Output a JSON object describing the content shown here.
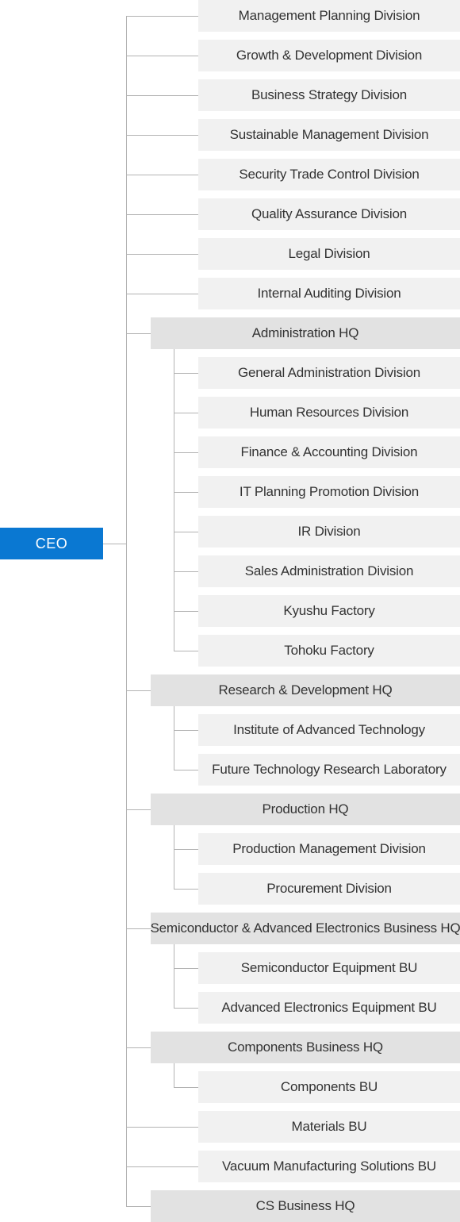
{
  "ceo": {
    "label": "CEO"
  },
  "items": [
    {
      "label": "Management Planning Division",
      "kind": "division",
      "subs": []
    },
    {
      "label": "Growth & Development Division",
      "kind": "division",
      "subs": []
    },
    {
      "label": "Business Strategy Division",
      "kind": "division",
      "subs": []
    },
    {
      "label": "Sustainable Management Division",
      "kind": "division",
      "subs": []
    },
    {
      "label": "Security Trade Control Division",
      "kind": "division",
      "subs": []
    },
    {
      "label": "Quality Assurance Division",
      "kind": "division",
      "subs": []
    },
    {
      "label": "Legal Division",
      "kind": "division",
      "subs": []
    },
    {
      "label": "Internal Auditing Division",
      "kind": "division",
      "subs": []
    },
    {
      "label": "Administration HQ",
      "kind": "hq",
      "subs": [
        "General Administration Division",
        "Human Resources Division",
        "Finance & Accounting Division",
        "IT Planning Promotion Division",
        "IR Division",
        "Sales Administration Division",
        "Kyushu Factory",
        "Tohoku Factory"
      ]
    },
    {
      "label": "Research & Development HQ",
      "kind": "hq",
      "subs": [
        "Institute of Advanced Technology",
        "Future Technology Research Laboratory"
      ]
    },
    {
      "label": "Production HQ",
      "kind": "hq",
      "subs": [
        "Production Management Division",
        "Procurement Division"
      ]
    },
    {
      "label": "Semiconductor & Advanced Electronics Business HQ",
      "kind": "hq",
      "subs": [
        "Semiconductor Equipment BU",
        "Advanced Electronics Equipment BU"
      ]
    },
    {
      "label": "Components Business HQ",
      "kind": "hq",
      "subs": [
        "Components BU"
      ]
    },
    {
      "label": "Materials BU",
      "kind": "division",
      "subs": []
    },
    {
      "label": "Vacuum Manufacturing Solutions BU",
      "kind": "division",
      "subs": []
    },
    {
      "label": "CS Business HQ",
      "kind": "hq",
      "subs": []
    }
  ]
}
